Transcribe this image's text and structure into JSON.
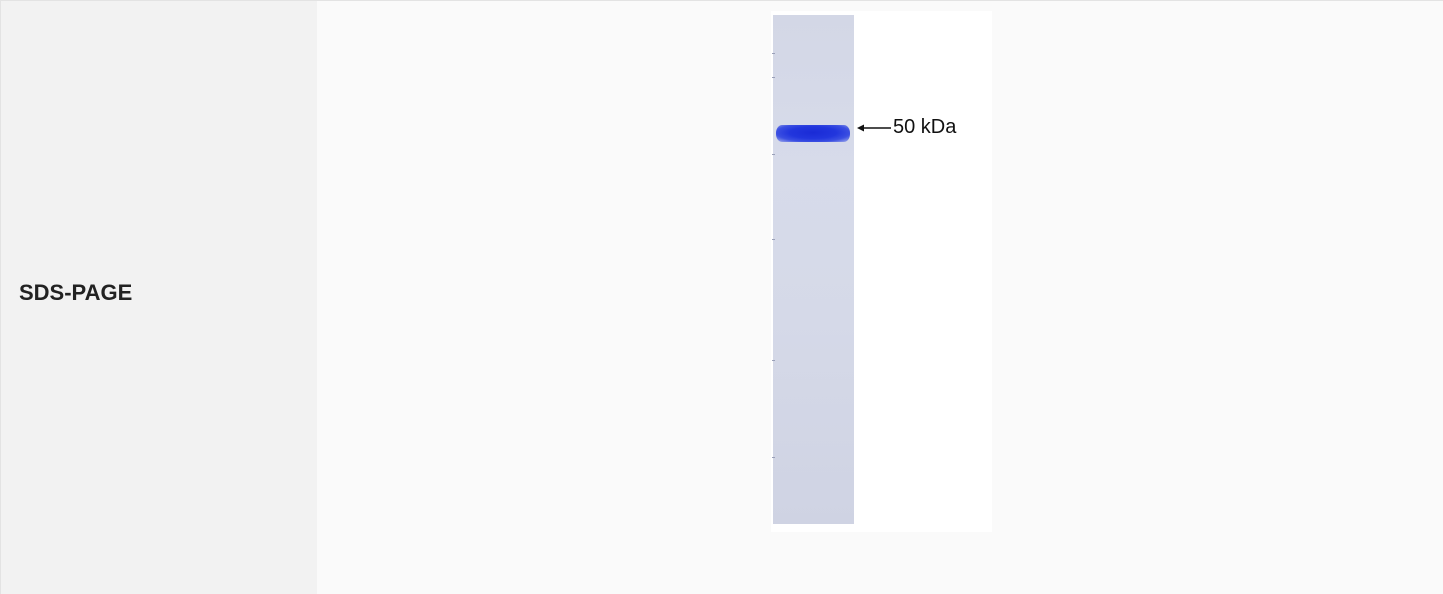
{
  "row": {
    "label": "SDS-PAGE"
  },
  "gel": {
    "band_label": "50 kDa",
    "band_color": "#2236dd",
    "lane_color": "#d5d9e8",
    "arrow_icon": "left-arrow-icon"
  }
}
